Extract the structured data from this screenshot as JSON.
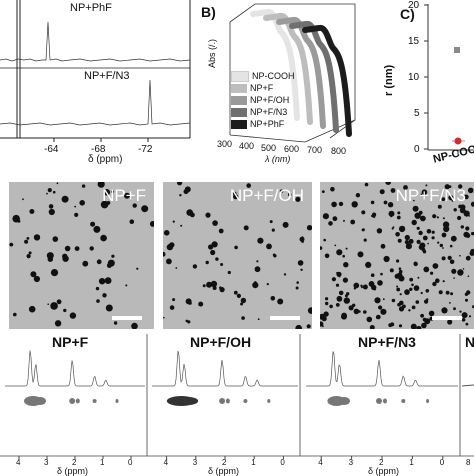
{
  "panelA": {
    "spectra": [
      "NP+PhF",
      "NP+F/N3"
    ],
    "xticks": [
      "-64",
      "-68",
      "-72"
    ],
    "xlabel": "δ (ppm)"
  },
  "panelB": {
    "letter": "B)",
    "ylabel": "Abs (",
    "ylabel_suffix": "/.)",
    "xlabel": "λ (nm)",
    "xticks": [
      "300",
      "400",
      "500",
      "600",
      "700",
      "800"
    ],
    "legend": [
      "NP-COOH",
      "NP+F",
      "NP+F/OH",
      "NP+F/N3",
      "NP+PhF"
    ],
    "colors": [
      "#e4e4e4",
      "#bdbdbd",
      "#9a9a9a",
      "#707070",
      "#1c1c1c"
    ]
  },
  "panelC": {
    "letter": "C)",
    "ylabel": "r (nm)",
    "yticks": [
      "20",
      "15",
      "10",
      "5",
      "0"
    ],
    "xtick": "NP-COOH"
  },
  "tem": [
    "NP+F",
    "NP+F/OH",
    "NP+F/N3"
  ],
  "nmr": {
    "titles": [
      "NP+F",
      "NP+F/OH",
      "NP+F/N3",
      "N"
    ],
    "xticks": [
      "4",
      "3",
      "2",
      "1",
      "0"
    ],
    "xlabel": "δ (ppm)",
    "last_tick": "8"
  },
  "chart_data": [
    {
      "type": "line",
      "panel": "A",
      "xlabel": "δ (ppm)",
      "xlim": [
        -60,
        -75
      ],
      "series": [
        {
          "name": "NP+PhF",
          "peak_ppm": -63.5
        },
        {
          "name": "NP+F/N3",
          "peak_ppm": -72.0
        }
      ]
    },
    {
      "type": "line",
      "panel": "B",
      "xlabel": "λ (nm)",
      "ylabel": "Abs (a.u.)",
      "xlim": [
        300,
        800
      ],
      "series": [
        {
          "name": "NP-COOH",
          "shoulder_nm": 520,
          "edge_nm": 560
        },
        {
          "name": "NP+F",
          "shoulder_nm": 560,
          "edge_nm": 600
        },
        {
          "name": "NP+F/OH",
          "shoulder_nm": 600,
          "edge_nm": 640
        },
        {
          "name": "NP+F/N3",
          "shoulder_nm": 640,
          "edge_nm": 680
        },
        {
          "name": "NP+PhF",
          "shoulder_nm": 680,
          "edge_nm": 720
        }
      ]
    },
    {
      "type": "scatter",
      "panel": "C",
      "ylabel": "r (nm)",
      "ylim": [
        0,
        20
      ],
      "categories": [
        "NP-COOH"
      ],
      "series": [
        {
          "name": "gray",
          "values": [
            13.5
          ]
        },
        {
          "name": "red",
          "values": [
            1.5
          ]
        }
      ]
    }
  ]
}
